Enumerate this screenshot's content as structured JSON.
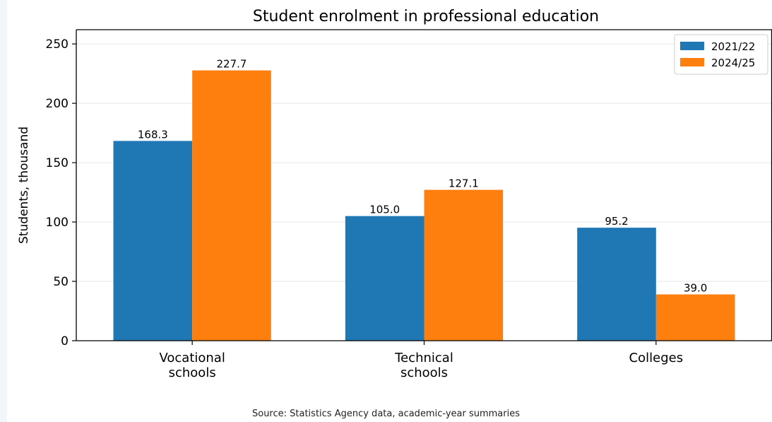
{
  "chart_data": {
    "type": "bar",
    "title": "Student enrolment in professional education",
    "xlabel": "",
    "ylabel": "Students, thousand",
    "categories": [
      [
        "Vocational",
        "schools"
      ],
      [
        "Technical",
        "schools"
      ],
      [
        "Colleges"
      ]
    ],
    "series": [
      {
        "name": "2021/22",
        "color": "#1f77b4",
        "values": [
          168.3,
          105.0,
          95.2
        ],
        "labels": [
          "168.3",
          "105.0",
          "95.2"
        ]
      },
      {
        "name": "2024/25",
        "color": "#ff7f0e",
        "values": [
          227.7,
          127.1,
          39.0
        ],
        "labels": [
          "227.7",
          "127.1",
          "39.0"
        ]
      }
    ],
    "ylim": [
      0,
      262
    ],
    "yticks": [
      0,
      50,
      100,
      150,
      200,
      250
    ],
    "grid": "horizontal",
    "legend_position": "top-right"
  },
  "footer": {
    "source": "Source: Statistics Agency data, academic-year summaries"
  }
}
